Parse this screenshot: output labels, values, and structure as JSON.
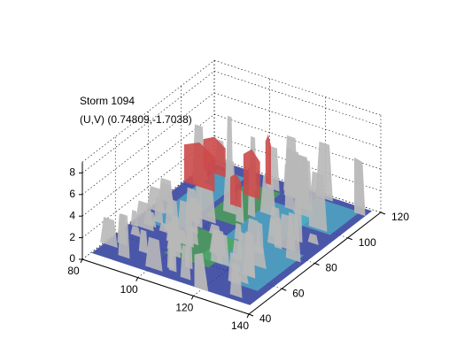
{
  "title_lines": [
    "Storm 1094",
    "(U,V) (0.74809,-1.7038)"
  ],
  "chart_data": {
    "type": "surface3d",
    "title": "Storm 1094",
    "subtitle": "(U,V) (0.74809,-1.7038)",
    "xlabel": "",
    "ylabel": "",
    "zlabel": "",
    "x_ticks": [
      80,
      100,
      120,
      140
    ],
    "y_ticks": [
      40,
      60,
      80,
      100,
      120
    ],
    "z_ticks": [
      0,
      2,
      4,
      6,
      8
    ],
    "xlim": [
      80,
      140
    ],
    "ylim": [
      40,
      120
    ],
    "zlim": [
      0,
      9
    ],
    "grid": true,
    "colors": {
      "isosurface_gray": "#b8b8b8",
      "isosurface_red": "#cc4a4a",
      "base_blue": "#2a3a9a",
      "base_cyan": "#4fb0c6",
      "base_green": "#4fa84f"
    }
  }
}
